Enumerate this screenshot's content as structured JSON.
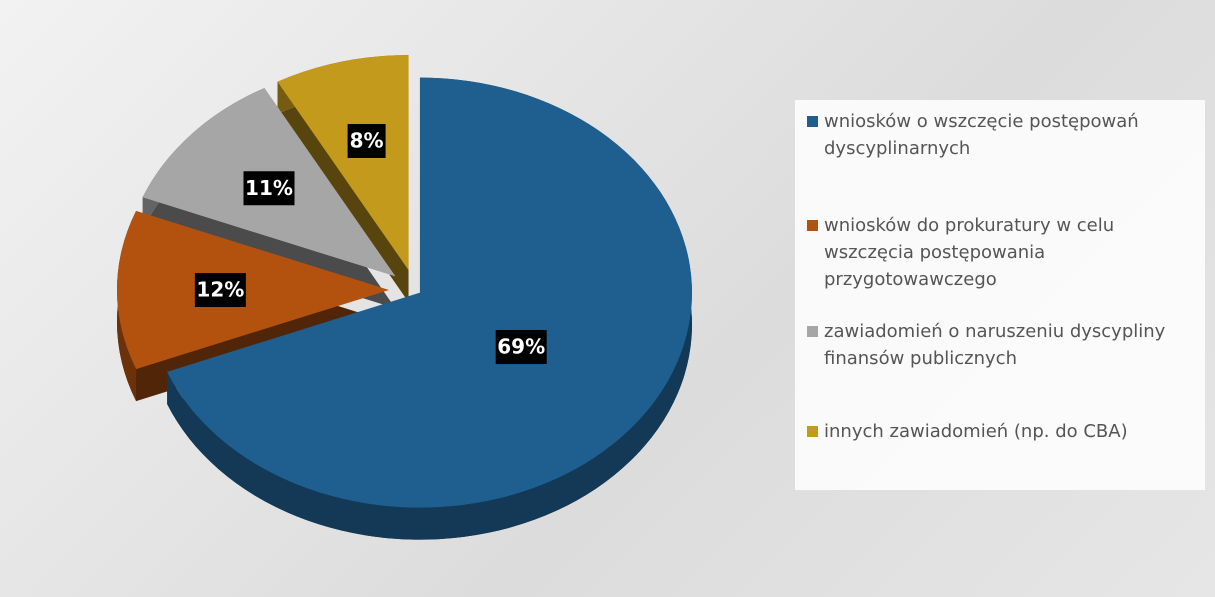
{
  "chart_data": {
    "type": "pie",
    "categories": [
      "wniosków o wszczęcie postępowań dyscyplinarnych",
      "wniosków do prokuratury w celu wszczęcia postępowania przygotowawczego",
      "zawiadomień o naruszeniu dyscypliny finansów publicznych",
      "innych zawiadomień (np. do CBA)"
    ],
    "values": [
      69,
      12,
      11,
      8
    ],
    "value_labels": [
      "69%",
      "12%",
      "11%",
      "8%"
    ],
    "colors": [
      "#1f5f8f",
      "#b3520f",
      "#a6a6a6",
      "#c49a1c"
    ],
    "legend": "right"
  }
}
